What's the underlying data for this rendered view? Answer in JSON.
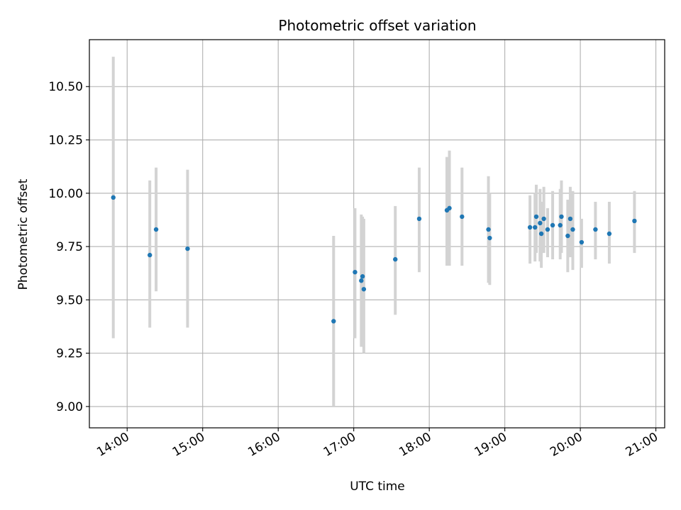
{
  "chart_data": {
    "type": "scatter",
    "title": "Photometric offset variation",
    "xlabel": "UTC time",
    "ylabel": "Photometric offset",
    "xlim": [
      "13:30",
      "21:07"
    ],
    "ylim": [
      8.9,
      10.72
    ],
    "grid": true,
    "x_ticks": [
      "14:00",
      "15:00",
      "16:00",
      "17:00",
      "18:00",
      "19:00",
      "20:00",
      "21:00"
    ],
    "y_ticks": [
      "9.00",
      "9.25",
      "9.50",
      "9.75",
      "10.00",
      "10.25",
      "10.50"
    ],
    "colors": {
      "points": "#1f77b4",
      "errorbars": "#d3d3d3",
      "grid": "#b0b0b0"
    },
    "series": [
      {
        "name": "offset",
        "points": [
          {
            "time": "13:49",
            "value": 9.98,
            "low": 9.32,
            "high": 10.64
          },
          {
            "time": "14:18",
            "value": 9.71,
            "low": 9.37,
            "high": 10.06
          },
          {
            "time": "14:23",
            "value": 9.83,
            "low": 9.54,
            "high": 10.12
          },
          {
            "time": "14:48",
            "value": 9.74,
            "low": 9.37,
            "high": 10.11
          },
          {
            "time": "16:44",
            "value": 9.4,
            "low": 9.0,
            "high": 9.8
          },
          {
            "time": "17:01",
            "value": 9.63,
            "low": 9.32,
            "high": 9.93
          },
          {
            "time": "17:06",
            "value": 9.59,
            "low": 9.28,
            "high": 9.9
          },
          {
            "time": "17:07",
            "value": 9.61,
            "low": 9.33,
            "high": 9.89
          },
          {
            "time": "17:08",
            "value": 9.55,
            "low": 9.25,
            "high": 9.88
          },
          {
            "time": "17:33",
            "value": 9.69,
            "low": 9.43,
            "high": 9.94
          },
          {
            "time": "17:52",
            "value": 9.88,
            "low": 9.63,
            "high": 10.12
          },
          {
            "time": "18:14",
            "value": 9.92,
            "low": 9.66,
            "high": 10.17
          },
          {
            "time": "18:16",
            "value": 9.93,
            "low": 9.66,
            "high": 10.2
          },
          {
            "time": "18:26",
            "value": 9.89,
            "low": 9.66,
            "high": 10.12
          },
          {
            "time": "18:47",
            "value": 9.83,
            "low": 9.58,
            "high": 10.08
          },
          {
            "time": "18:48",
            "value": 9.79,
            "low": 9.57,
            "high": 10.0
          },
          {
            "time": "19:20",
            "value": 9.84,
            "low": 9.67,
            "high": 9.99
          },
          {
            "time": "19:24",
            "value": 9.84,
            "low": 9.68,
            "high": 10.0
          },
          {
            "time": "19:25",
            "value": 9.89,
            "low": 9.72,
            "high": 10.04
          },
          {
            "time": "19:28",
            "value": 9.86,
            "low": 9.68,
            "high": 10.02
          },
          {
            "time": "19:29",
            "value": 9.81,
            "low": 9.65,
            "high": 9.96
          },
          {
            "time": "19:31",
            "value": 9.88,
            "low": 9.72,
            "high": 10.03
          },
          {
            "time": "19:34",
            "value": 9.83,
            "low": 9.7,
            "high": 9.93
          },
          {
            "time": "19:38",
            "value": 9.85,
            "low": 9.69,
            "high": 10.01
          },
          {
            "time": "19:44",
            "value": 9.85,
            "low": 9.69,
            "high": 10.02
          },
          {
            "time": "19:45",
            "value": 9.89,
            "low": 9.72,
            "high": 10.06
          },
          {
            "time": "19:50",
            "value": 9.8,
            "low": 9.63,
            "high": 9.97
          },
          {
            "time": "19:52",
            "value": 9.88,
            "low": 9.7,
            "high": 10.03
          },
          {
            "time": "19:54",
            "value": 9.83,
            "low": 9.64,
            "high": 10.01
          },
          {
            "time": "20:01",
            "value": 9.77,
            "low": 9.65,
            "high": 9.88
          },
          {
            "time": "20:12",
            "value": 9.83,
            "low": 9.69,
            "high": 9.96
          },
          {
            "time": "20:23",
            "value": 9.81,
            "low": 9.67,
            "high": 9.96
          },
          {
            "time": "20:43",
            "value": 9.87,
            "low": 9.72,
            "high": 10.01
          }
        ]
      }
    ]
  }
}
